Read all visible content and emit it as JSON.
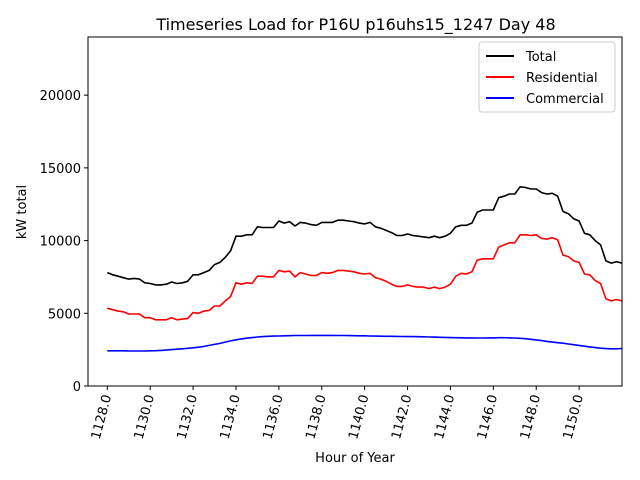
{
  "chart_data": {
    "type": "line",
    "title": "Timeseries Load for P16U p16uhs15_1247  Day 48",
    "xlabel": "Hour of Year",
    "ylabel": "kW total",
    "xlim": [
      1127.1,
      1152.0
    ],
    "ylim": [
      0,
      24000
    ],
    "xticks": [
      1128,
      1130,
      1132,
      1134,
      1136,
      1138,
      1140,
      1142,
      1144,
      1146,
      1148,
      1150
    ],
    "xtick_labels": [
      "1128.0",
      "1130.0",
      "1132.0",
      "1134.0",
      "1136.0",
      "1138.0",
      "1140.0",
      "1142.0",
      "1144.0",
      "1146.0",
      "1148.0",
      "1150.0"
    ],
    "yticks": [
      0,
      5000,
      10000,
      15000,
      20000
    ],
    "ytick_labels": [
      "0",
      "5000",
      "10000",
      "15000",
      "20000"
    ],
    "legend_position": "top-right",
    "x_start": 1128.0,
    "x_step": 0.25,
    "series": [
      {
        "name": "Total",
        "color": "#000000",
        "values": [
          7800,
          7650,
          7550,
          7450,
          7350,
          7400,
          7350,
          7100,
          7050,
          6950,
          6950,
          7000,
          7150,
          7050,
          7100,
          7200,
          7650,
          7650,
          7800,
          7950,
          8350,
          8500,
          8850,
          9300,
          10300,
          10300,
          10400,
          10400,
          10950,
          10900,
          10900,
          10900,
          11350,
          11200,
          11300,
          11000,
          11250,
          11200,
          11100,
          11050,
          11250,
          11250,
          11250,
          11400,
          11400,
          11350,
          11300,
          11200,
          11150,
          11250,
          10950,
          10850,
          10700,
          10550,
          10350,
          10350,
          10450,
          10350,
          10300,
          10250,
          10200,
          10300,
          10200,
          10300,
          10500,
          10950,
          11050,
          11050,
          11200,
          11950,
          12100,
          12100,
          12100,
          12950,
          13050,
          13200,
          13200,
          13700,
          13650,
          13550,
          13550,
          13300,
          13200,
          13250,
          13050,
          12000,
          11850,
          11500,
          11350,
          10500,
          10400,
          10000,
          9700,
          8600,
          8450,
          8550,
          8450
        ]
      },
      {
        "name": "Residential",
        "color": "#ff0000",
        "values": [
          5350,
          5250,
          5150,
          5100,
          4950,
          4950,
          4950,
          4700,
          4700,
          4550,
          4550,
          4550,
          4700,
          4550,
          4600,
          4650,
          5050,
          5000,
          5150,
          5200,
          5500,
          5500,
          5850,
          6150,
          7100,
          7000,
          7100,
          7050,
          7550,
          7550,
          7500,
          7500,
          7950,
          7850,
          7900,
          7500,
          7800,
          7700,
          7600,
          7600,
          7800,
          7750,
          7800,
          7950,
          7950,
          7900,
          7850,
          7750,
          7700,
          7750,
          7450,
          7350,
          7200,
          7000,
          6850,
          6850,
          6950,
          6850,
          6800,
          6800,
          6700,
          6800,
          6700,
          6800,
          7000,
          7550,
          7750,
          7700,
          7850,
          8650,
          8750,
          8750,
          8750,
          9550,
          9700,
          9850,
          9850,
          10400,
          10400,
          10350,
          10400,
          10150,
          10100,
          10200,
          10050,
          9000,
          8900,
          8600,
          8500,
          7700,
          7650,
          7250,
          7050,
          6000,
          5850,
          5950,
          5850
        ]
      },
      {
        "name": "Commercial",
        "color": "#0000ff",
        "values": [
          2420,
          2420,
          2420,
          2420,
          2410,
          2410,
          2410,
          2410,
          2420,
          2430,
          2450,
          2470,
          2500,
          2530,
          2560,
          2590,
          2630,
          2670,
          2720,
          2790,
          2860,
          2930,
          3020,
          3100,
          3180,
          3240,
          3290,
          3330,
          3370,
          3400,
          3420,
          3430,
          3440,
          3450,
          3460,
          3470,
          3470,
          3475,
          3480,
          3480,
          3480,
          3480,
          3480,
          3475,
          3470,
          3465,
          3460,
          3455,
          3450,
          3440,
          3430,
          3425,
          3420,
          3415,
          3410,
          3405,
          3400,
          3395,
          3390,
          3380,
          3370,
          3360,
          3350,
          3340,
          3330,
          3320,
          3315,
          3310,
          3305,
          3300,
          3300,
          3305,
          3310,
          3320,
          3320,
          3310,
          3300,
          3280,
          3250,
          3210,
          3170,
          3120,
          3070,
          3020,
          2980,
          2940,
          2890,
          2840,
          2790,
          2740,
          2690,
          2640,
          2600,
          2570,
          2560,
          2560,
          2580
        ]
      }
    ]
  }
}
